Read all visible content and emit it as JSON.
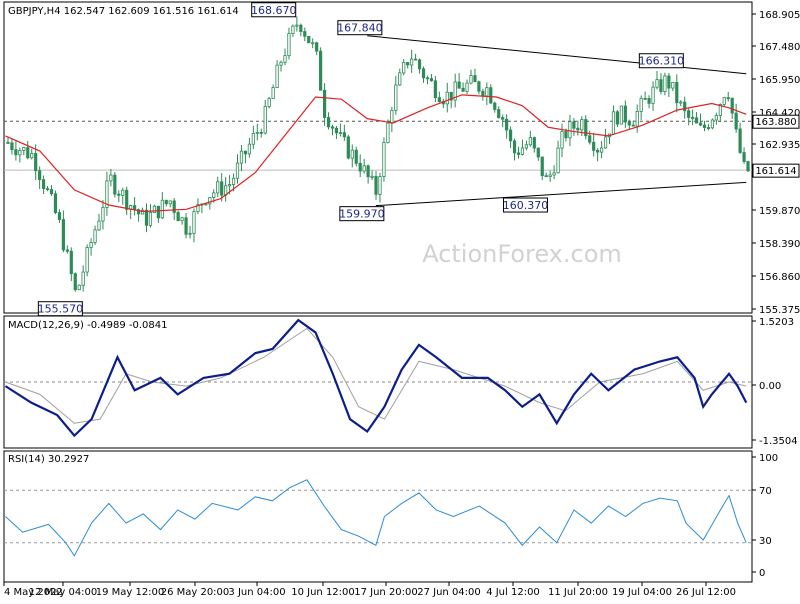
{
  "chart_data": [
    {
      "type": "candlestick",
      "title": "GBPJPY,H4  162.547 162.609 161.516 161.614",
      "watermark": "ActionForex.com",
      "ylim": [
        155.0,
        169.4
      ],
      "y_ticks": [
        "168.905",
        "167.480",
        "165.950",
        "164.420",
        "162.935",
        "161.614",
        "159.870",
        "158.390",
        "156.860",
        "155.375"
      ],
      "x_ticks": [
        "4 May 2022",
        "12 May 04:00",
        "19 May 12:00",
        "26 May 20:00",
        "3 Jun 04:00",
        "10 Jun 12:00",
        "17 Jun 20:00",
        "27 Jun 04:00",
        "4 Jul 12:00",
        "11 Jul 20:00",
        "19 Jul 04:00",
        "26 Jul 12:00"
      ],
      "price_tags": [
        {
          "label": "163.880",
          "value": 163.88,
          "style": "dashed-level"
        },
        {
          "label": "161.614",
          "value": 161.614,
          "style": "current-price"
        }
      ],
      "annotations": [
        {
          "label": "168.670",
          "date": "6 Jun 2022",
          "value": 168.67,
          "kind": "high"
        },
        {
          "label": "155.570",
          "date": "12 May 2022",
          "value": 155.57,
          "kind": "low"
        },
        {
          "label": "167.840",
          "date": "16 Jun 2022",
          "value": 167.84,
          "kind": "high"
        },
        {
          "label": "159.970",
          "date": "16 Jun 2022",
          "value": 159.97,
          "kind": "low"
        },
        {
          "label": "160.370",
          "date": "5 Jul 2022",
          "value": 160.37,
          "kind": "low"
        },
        {
          "label": "166.310",
          "date": "21 Jul 2022",
          "value": 166.31,
          "kind": "high"
        }
      ],
      "trendlines": [
        {
          "from": {
            "date": "15 Jun 2022",
            "value": 167.84
          },
          "to": {
            "date": "29 Jul 2022",
            "value": 166.08
          }
        },
        {
          "from": {
            "date": "16 Jun 2022",
            "value": 159.97
          },
          "to": {
            "date": "29 Jul 2022",
            "value": 161.05
          }
        }
      ],
      "price_path": [
        {
          "date": "4 May 2022",
          "value": 162.9
        },
        {
          "date": "7 May 2022",
          "value": 162.3
        },
        {
          "date": "10 May 2022",
          "value": 159.2
        },
        {
          "date": "12 May 2022",
          "value": 155.8
        },
        {
          "date": "14 May 2022",
          "value": 158.6
        },
        {
          "date": "16 May 2022",
          "value": 161.2
        },
        {
          "date": "18 May 2022",
          "value": 160.2
        },
        {
          "date": "20 May 2022",
          "value": 159.3
        },
        {
          "date": "23 May 2022",
          "value": 160.2
        },
        {
          "date": "25 May 2022",
          "value": 158.9
        },
        {
          "date": "27 May 2022",
          "value": 160.4
        },
        {
          "date": "30 May 2022",
          "value": 161.0
        },
        {
          "date": "1 Jun 2022",
          "value": 162.6
        },
        {
          "date": "3 Jun 2022",
          "value": 164.0
        },
        {
          "date": "5 Jun 2022",
          "value": 166.8
        },
        {
          "date": "7 Jun 2022",
          "value": 168.6
        },
        {
          "date": "9 Jun 2022",
          "value": 167.0
        },
        {
          "date": "10 Jun 2022",
          "value": 164.4
        },
        {
          "date": "12 Jun 2022",
          "value": 162.9
        },
        {
          "date": "14 Jun 2022",
          "value": 162.0
        },
        {
          "date": "16 Jun 2022",
          "value": 160.6
        },
        {
          "date": "18 Jun 2022",
          "value": 165.0
        },
        {
          "date": "20 Jun 2022",
          "value": 167.0
        },
        {
          "date": "22 Jun 2022",
          "value": 165.8
        },
        {
          "date": "24 Jun 2022",
          "value": 165.0
        },
        {
          "date": "27 Jun 2022",
          "value": 165.6
        },
        {
          "date": "29 Jun 2022",
          "value": 165.4
        },
        {
          "date": "1 Jul 2022",
          "value": 163.9
        },
        {
          "date": "2 Jul 2022",
          "value": 162.4
        },
        {
          "date": "4 Jul 2022",
          "value": 162.9
        },
        {
          "date": "6 Jul 2022",
          "value": 161.0
        },
        {
          "date": "8 Jul 2022",
          "value": 163.3
        },
        {
          "date": "10 Jul 2022",
          "value": 163.9
        },
        {
          "date": "12 Jul 2022",
          "value": 162.6
        },
        {
          "date": "14 Jul 2022",
          "value": 164.2
        },
        {
          "date": "16 Jul 2022",
          "value": 164.0
        },
        {
          "date": "18 Jul 2022",
          "value": 165.1
        },
        {
          "date": "20 Jul 2022",
          "value": 165.8
        },
        {
          "date": "22 Jul 2022",
          "value": 164.2
        },
        {
          "date": "24 Jul 2022",
          "value": 163.4
        },
        {
          "date": "26 Jul 2022",
          "value": 164.6
        },
        {
          "date": "27 Jul 2022",
          "value": 165.6
        },
        {
          "date": "28 Jul 2022",
          "value": 163.3
        },
        {
          "date": "29 Jul 2022",
          "value": 161.6
        }
      ],
      "moving_average": [
        {
          "date": "4 May 2022",
          "value": 163.2
        },
        {
          "date": "8 May 2022",
          "value": 162.5
        },
        {
          "date": "12 May 2022",
          "value": 160.7
        },
        {
          "date": "16 May 2022",
          "value": 160.0
        },
        {
          "date": "20 May 2022",
          "value": 159.7
        },
        {
          "date": "25 May 2022",
          "value": 159.8
        },
        {
          "date": "29 May 2022",
          "value": 160.3
        },
        {
          "date": "2 Jun 2022",
          "value": 161.5
        },
        {
          "date": "6 Jun 2022",
          "value": 163.5
        },
        {
          "date": "9 Jun 2022",
          "value": 165.0
        },
        {
          "date": "12 Jun 2022",
          "value": 164.9
        },
        {
          "date": "15 Jun 2022",
          "value": 164.0
        },
        {
          "date": "18 Jun 2022",
          "value": 163.8
        },
        {
          "date": "22 Jun 2022",
          "value": 164.5
        },
        {
          "date": "26 Jun 2022",
          "value": 165.1
        },
        {
          "date": "30 Jun 2022",
          "value": 165.0
        },
        {
          "date": "3 Jul 2022",
          "value": 164.6
        },
        {
          "date": "6 Jul 2022",
          "value": 163.6
        },
        {
          "date": "9 Jul 2022",
          "value": 163.4
        },
        {
          "date": "13 Jul 2022",
          "value": 163.2
        },
        {
          "date": "17 Jul 2022",
          "value": 163.7
        },
        {
          "date": "21 Jul 2022",
          "value": 164.4
        },
        {
          "date": "25 Jul 2022",
          "value": 164.7
        },
        {
          "date": "27 Jul 2022",
          "value": 164.5
        },
        {
          "date": "29 Jul 2022",
          "value": 164.2
        }
      ]
    },
    {
      "type": "line",
      "title": "MACD(12,26,9) -0.4989 -0.0841",
      "ylim": [
        -1.6,
        1.6
      ],
      "y_ticks": [
        "1.5203",
        "0.00",
        "-1.3504"
      ],
      "reference_levels": [
        0
      ],
      "series": [
        {
          "values": [
            {
              "date": "4 May 2022",
              "value": -0.1
            },
            {
              "date": "7 May 2022",
              "value": -0.5
            },
            {
              "date": "10 May 2022",
              "value": -0.8
            },
            {
              "date": "12 May 2022",
              "value": -1.3
            },
            {
              "date": "14 May 2022",
              "value": -0.9
            },
            {
              "date": "17 May 2022",
              "value": 0.6
            },
            {
              "date": "19 May 2022",
              "value": -0.2
            },
            {
              "date": "22 May 2022",
              "value": 0.1
            },
            {
              "date": "24 May 2022",
              "value": -0.3
            },
            {
              "date": "27 May 2022",
              "value": 0.1
            },
            {
              "date": "30 May 2022",
              "value": 0.2
            },
            {
              "date": "2 Jun 2022",
              "value": 0.7
            },
            {
              "date": "4 Jun 2022",
              "value": 0.8
            },
            {
              "date": "7 Jun 2022",
              "value": 1.5
            },
            {
              "date": "9 Jun 2022",
              "value": 1.2
            },
            {
              "date": "11 Jun 2022",
              "value": 0.2
            },
            {
              "date": "13 Jun 2022",
              "value": -0.9
            },
            {
              "date": "15 Jun 2022",
              "value": -1.2
            },
            {
              "date": "17 Jun 2022",
              "value": -0.6
            },
            {
              "date": "19 Jun 2022",
              "value": 0.3
            },
            {
              "date": "21 Jun 2022",
              "value": 0.9
            },
            {
              "date": "23 Jun 2022",
              "value": 0.6
            },
            {
              "date": "26 Jun 2022",
              "value": 0.1
            },
            {
              "date": "29 Jun 2022",
              "value": 0.1
            },
            {
              "date": "1 Jul 2022",
              "value": -0.2
            },
            {
              "date": "3 Jul 2022",
              "value": -0.6
            },
            {
              "date": "5 Jul 2022",
              "value": -0.3
            },
            {
              "date": "7 Jul 2022",
              "value": -1.0
            },
            {
              "date": "9 Jul 2022",
              "value": -0.3
            },
            {
              "date": "11 Jul 2022",
              "value": 0.2
            },
            {
              "date": "13 Jul 2022",
              "value": -0.2
            },
            {
              "date": "16 Jul 2022",
              "value": 0.3
            },
            {
              "date": "19 Jul 2022",
              "value": 0.5
            },
            {
              "date": "21 Jul 2022",
              "value": 0.6
            },
            {
              "date": "23 Jul 2022",
              "value": 0.1
            },
            {
              "date": "24 Jul 2022",
              "value": -0.6
            },
            {
              "date": "25 Jul 2022",
              "value": -0.3
            },
            {
              "date": "27 Jul 2022",
              "value": 0.2
            },
            {
              "date": "28 Jul 2022",
              "value": -0.1
            },
            {
              "date": "29 Jul 2022",
              "value": -0.5
            }
          ]
        },
        {
          "values": [
            {
              "date": "4 May 2022",
              "value": 0.0
            },
            {
              "date": "8 May 2022",
              "value": -0.3
            },
            {
              "date": "12 May 2022",
              "value": -1.0
            },
            {
              "date": "15 May 2022",
              "value": -0.9
            },
            {
              "date": "18 May 2022",
              "value": 0.2
            },
            {
              "date": "21 May 2022",
              "value": 0.0
            },
            {
              "date": "25 May 2022",
              "value": -0.1
            },
            {
              "date": "29 May 2022",
              "value": 0.1
            },
            {
              "date": "3 Jun 2022",
              "value": 0.6
            },
            {
              "date": "8 Jun 2022",
              "value": 1.3
            },
            {
              "date": "11 Jun 2022",
              "value": 0.6
            },
            {
              "date": "14 Jun 2022",
              "value": -0.6
            },
            {
              "date": "17 Jun 2022",
              "value": -0.9
            },
            {
              "date": "21 Jun 2022",
              "value": 0.5
            },
            {
              "date": "25 Jun 2022",
              "value": 0.3
            },
            {
              "date": "1 Jul 2022",
              "value": -0.1
            },
            {
              "date": "5 Jul 2022",
              "value": -0.5
            },
            {
              "date": "8 Jul 2022",
              "value": -0.7
            },
            {
              "date": "12 Jul 2022",
              "value": 0.0
            },
            {
              "date": "17 Jul 2022",
              "value": 0.2
            },
            {
              "date": "21 Jul 2022",
              "value": 0.5
            },
            {
              "date": "24 Jul 2022",
              "value": -0.2
            },
            {
              "date": "27 Jul 2022",
              "value": 0.0
            },
            {
              "date": "29 Jul 2022",
              "value": -0.1
            }
          ]
        }
      ]
    },
    {
      "type": "line",
      "title": "RSI(14) 30.2927",
      "ylim": [
        0,
        100
      ],
      "y_ticks": [
        "100",
        "70",
        "30",
        "0"
      ],
      "reference_levels": [
        70,
        30
      ],
      "series": [
        {
          "values": [
            {
              "date": "4 May 2022",
              "value": 50
            },
            {
              "date": "6 May 2022",
              "value": 38
            },
            {
              "date": "9 May 2022",
              "value": 44
            },
            {
              "date": "11 May 2022",
              "value": 30
            },
            {
              "date": "12 May 2022",
              "value": 20
            },
            {
              "date": "14 May 2022",
              "value": 45
            },
            {
              "date": "16 May 2022",
              "value": 60
            },
            {
              "date": "18 May 2022",
              "value": 45
            },
            {
              "date": "20 May 2022",
              "value": 52
            },
            {
              "date": "22 May 2022",
              "value": 40
            },
            {
              "date": "24 May 2022",
              "value": 55
            },
            {
              "date": "26 May 2022",
              "value": 48
            },
            {
              "date": "28 May 2022",
              "value": 60
            },
            {
              "date": "31 May 2022",
              "value": 55
            },
            {
              "date": "2 Jun 2022",
              "value": 65
            },
            {
              "date": "4 Jun 2022",
              "value": 62
            },
            {
              "date": "6 Jun 2022",
              "value": 72
            },
            {
              "date": "8 Jun 2022",
              "value": 78
            },
            {
              "date": "10 Jun 2022",
              "value": 58
            },
            {
              "date": "12 Jun 2022",
              "value": 40
            },
            {
              "date": "14 Jun 2022",
              "value": 35
            },
            {
              "date": "16 Jun 2022",
              "value": 28
            },
            {
              "date": "17 Jun 2022",
              "value": 50
            },
            {
              "date": "19 Jun 2022",
              "value": 60
            },
            {
              "date": "21 Jun 2022",
              "value": 68
            },
            {
              "date": "23 Jun 2022",
              "value": 55
            },
            {
              "date": "25 Jun 2022",
              "value": 50
            },
            {
              "date": "28 Jun 2022",
              "value": 58
            },
            {
              "date": "1 Jul 2022",
              "value": 45
            },
            {
              "date": "3 Jul 2022",
              "value": 28
            },
            {
              "date": "5 Jul 2022",
              "value": 42
            },
            {
              "date": "7 Jul 2022",
              "value": 30
            },
            {
              "date": "9 Jul 2022",
              "value": 55
            },
            {
              "date": "11 Jul 2022",
              "value": 45
            },
            {
              "date": "13 Jul 2022",
              "value": 58
            },
            {
              "date": "15 Jul 2022",
              "value": 50
            },
            {
              "date": "17 Jul 2022",
              "value": 60
            },
            {
              "date": "19 Jul 2022",
              "value": 64
            },
            {
              "date": "21 Jul 2022",
              "value": 62
            },
            {
              "date": "22 Jul 2022",
              "value": 45
            },
            {
              "date": "24 Jul 2022",
              "value": 32
            },
            {
              "date": "26 Jul 2022",
              "value": 55
            },
            {
              "date": "27 Jul 2022",
              "value": 66
            },
            {
              "date": "28 Jul 2022",
              "value": 45
            },
            {
              "date": "29 Jul 2022",
              "value": 30
            }
          ]
        }
      ]
    }
  ],
  "colors": {
    "candle": "#2e8b57",
    "moving_average": "#dd2222",
    "trendline": "#000000",
    "macd_line": "#0b1e8c",
    "macd_signal": "#a0a0a0",
    "rsi_line": "#2b8cd6",
    "label_text": "#1e2a8a",
    "watermark": "#d2d2d2"
  }
}
